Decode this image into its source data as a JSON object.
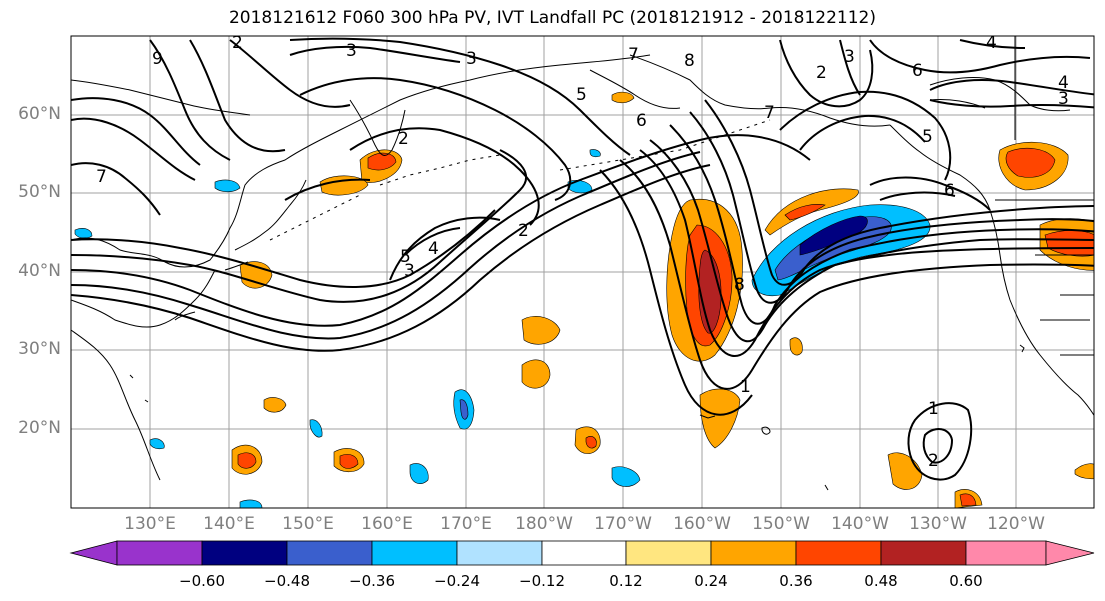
{
  "title": "2018121612 F060 300 hPa PV, IVT Landfall PC (2018121912 - 2018122112)",
  "map": {
    "lat_labels": [
      "60°N",
      "50°N",
      "40°N",
      "30°N",
      "20°N"
    ],
    "lon_labels": [
      "130°E",
      "140°E",
      "150°E",
      "160°E",
      "170°E",
      "180°W",
      "170°W",
      "160°W",
      "150°W",
      "140°W",
      "130°W",
      "120°W"
    ],
    "contour_labels": [
      "2",
      "3",
      "3",
      "9",
      "5",
      "6",
      "7",
      "8",
      "2",
      "3",
      "6",
      "7",
      "4",
      "4",
      "3",
      "5",
      "6",
      "7",
      "2",
      "5",
      "4",
      "3",
      "2",
      "8",
      "1",
      "1",
      "2"
    ]
  },
  "colorbar": {
    "ticks": [
      "−0.60",
      "−0.48",
      "−0.36",
      "−0.24",
      "−0.12",
      "0.12",
      "0.24",
      "0.36",
      "0.48",
      "0.60"
    ],
    "colors": [
      "#9933cc",
      "#000080",
      "#3a5fcd",
      "#00bfff",
      "#b0e2ff",
      "#ffffff",
      "#ffe680",
      "#ffa500",
      "#ff4500",
      "#b22222",
      "#ff88aa"
    ]
  }
}
